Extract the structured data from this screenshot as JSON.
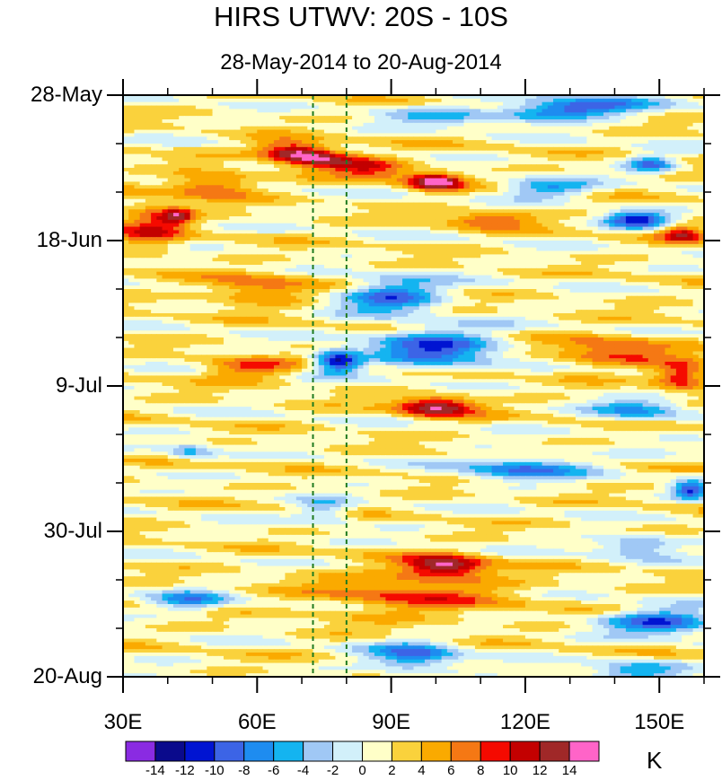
{
  "chart_data": {
    "type": "heatmap",
    "title": "HIRS UTWV: 20S - 10S",
    "subtitle": "28-May-2014 to 20-Aug-2014",
    "x": {
      "range": [
        30,
        160
      ],
      "ticks": [
        {
          "value": 30,
          "label": "30E"
        },
        {
          "value": 60,
          "label": "60E"
        },
        {
          "value": 90,
          "label": "90E"
        },
        {
          "value": 120,
          "label": "120E"
        },
        {
          "value": 150,
          "label": "150E"
        }
      ],
      "minor_step": 10
    },
    "y": {
      "range_days": [
        0,
        84
      ],
      "direction": "downward",
      "ticks": [
        {
          "day": 0,
          "label": "28-May"
        },
        {
          "day": 21,
          "label": "18-Jun"
        },
        {
          "day": 42,
          "label": "9-Jul"
        },
        {
          "day": 63,
          "label": "30-Jul"
        },
        {
          "day": 84,
          "label": "20-Aug"
        }
      ],
      "minor_step_days": 7
    },
    "reference_lines_lon": [
      72.5,
      80
    ],
    "reference_line_color": "#1e7a1e",
    "colorbar": {
      "units": "K",
      "levels": [
        -14,
        -12,
        -10,
        -8,
        -6,
        -4,
        -2,
        0,
        2,
        4,
        6,
        8,
        10,
        12,
        14
      ],
      "labels": [
        "-14",
        "-12",
        "-10",
        "-8",
        "-6",
        "-4",
        "-2",
        "0",
        "2",
        "4",
        "6",
        "8",
        "10",
        "12",
        "14"
      ],
      "colors": [
        "#8a2be2",
        "#0a0a8c",
        "#0014d2",
        "#3c64e6",
        "#1e8cf0",
        "#14b4f0",
        "#a0c8f5",
        "#d2f0fa",
        "#ffffc8",
        "#fad23c",
        "#faaa00",
        "#f57814",
        "#f50a00",
        "#c30000",
        "#a02828",
        "#ff64c8"
      ]
    },
    "features": [
      {
        "lon": 70,
        "day": 8.5,
        "amp": 15,
        "sx": 9,
        "sy": 1.6,
        "slope": 0.06
      },
      {
        "lon": 100,
        "day": 12.5,
        "amp": 14,
        "sx": 6,
        "sy": 1.2,
        "slope": 0
      },
      {
        "lon": 85,
        "day": 10.5,
        "amp": 8,
        "sx": 10,
        "sy": 1.6,
        "slope": 0.05
      },
      {
        "lon": 50,
        "day": 13,
        "amp": 8,
        "sx": 9,
        "sy": 1.8,
        "slope": 0
      },
      {
        "lon": 36,
        "day": 19,
        "amp": 7,
        "sx": 8,
        "sy": 3.5,
        "slope": 0
      },
      {
        "lon": 42,
        "day": 17.5,
        "amp": 9,
        "sx": 4,
        "sy": 1.2,
        "slope": 0
      },
      {
        "lon": 130,
        "day": 2,
        "amp": -12,
        "sx": 16,
        "sy": 1.5,
        "slope": -0.04
      },
      {
        "lon": 100,
        "day": 3,
        "amp": -5,
        "sx": 12,
        "sy": 1.5,
        "slope": 0
      },
      {
        "lon": 125,
        "day": 13.5,
        "amp": -8,
        "sx": 10,
        "sy": 1.3,
        "slope": 0
      },
      {
        "lon": 148,
        "day": 10,
        "amp": -10,
        "sx": 5,
        "sy": 1.2,
        "slope": 0
      },
      {
        "lon": 145,
        "day": 18,
        "amp": -12,
        "sx": 7,
        "sy": 1.2,
        "slope": 0
      },
      {
        "lon": 155,
        "day": 20,
        "amp": 9,
        "sx": 5,
        "sy": 1.3,
        "slope": 0
      },
      {
        "lon": 112,
        "day": 18,
        "amp": 7,
        "sx": 10,
        "sy": 1.2,
        "slope": 0
      },
      {
        "lon": 90,
        "day": 29,
        "amp": -10,
        "sx": 11,
        "sy": 2.5,
        "slope": -0.03
      },
      {
        "lon": 100,
        "day": 36.5,
        "amp": -11,
        "sx": 14,
        "sy": 2.8,
        "slope": 0
      },
      {
        "lon": 78,
        "day": 38.5,
        "amp": -14,
        "sx": 5,
        "sy": 1.6,
        "slope": 0
      },
      {
        "lon": 58,
        "day": 39.5,
        "amp": 7,
        "sx": 10,
        "sy": 1.6,
        "slope": 0
      },
      {
        "lon": 140,
        "day": 37,
        "amp": 7,
        "sx": 14,
        "sy": 2.2,
        "slope": 0
      },
      {
        "lon": 155,
        "day": 40.5,
        "amp": 10,
        "sx": 6,
        "sy": 1.8,
        "slope": 0
      },
      {
        "lon": 100,
        "day": 45,
        "amp": 13,
        "sx": 9,
        "sy": 1.4,
        "slope": 0
      },
      {
        "lon": 145,
        "day": 45.5,
        "amp": -7,
        "sx": 10,
        "sy": 1.6,
        "slope": 0
      },
      {
        "lon": 120,
        "day": 54,
        "amp": -9,
        "sx": 14,
        "sy": 1.6,
        "slope": -0.02
      },
      {
        "lon": 157,
        "day": 57,
        "amp": -11,
        "sx": 4,
        "sy": 1.3,
        "slope": 0
      },
      {
        "lon": 45,
        "day": 51.5,
        "amp": -6,
        "sx": 5,
        "sy": 1.2,
        "slope": 0
      },
      {
        "lon": 102,
        "day": 68,
        "amp": 12,
        "sx": 9,
        "sy": 1.6,
        "slope": 0
      },
      {
        "lon": 95,
        "day": 72,
        "amp": 6,
        "sx": 22,
        "sy": 3.5,
        "slope": 0
      },
      {
        "lon": 145,
        "day": 65,
        "amp": -7,
        "sx": 10,
        "sy": 1.4,
        "slope": 0
      },
      {
        "lon": 150,
        "day": 76,
        "amp": -11,
        "sx": 12,
        "sy": 1.8,
        "slope": 0
      },
      {
        "lon": 95,
        "day": 81,
        "amp": -9,
        "sx": 10,
        "sy": 2.2,
        "slope": 0
      },
      {
        "lon": 145,
        "day": 83,
        "amp": -7,
        "sx": 10,
        "sy": 1.4,
        "slope": 0
      },
      {
        "lon": 75,
        "day": 60,
        "amp": -6,
        "sx": 6,
        "sy": 1.8,
        "slope": 0
      },
      {
        "lon": 45,
        "day": 73,
        "amp": -7,
        "sx": 8,
        "sy": 1.6,
        "slope": 0
      },
      {
        "lon": 60,
        "day": 28,
        "amp": 6,
        "sx": 12,
        "sy": 2.2,
        "slope": 0
      }
    ]
  }
}
